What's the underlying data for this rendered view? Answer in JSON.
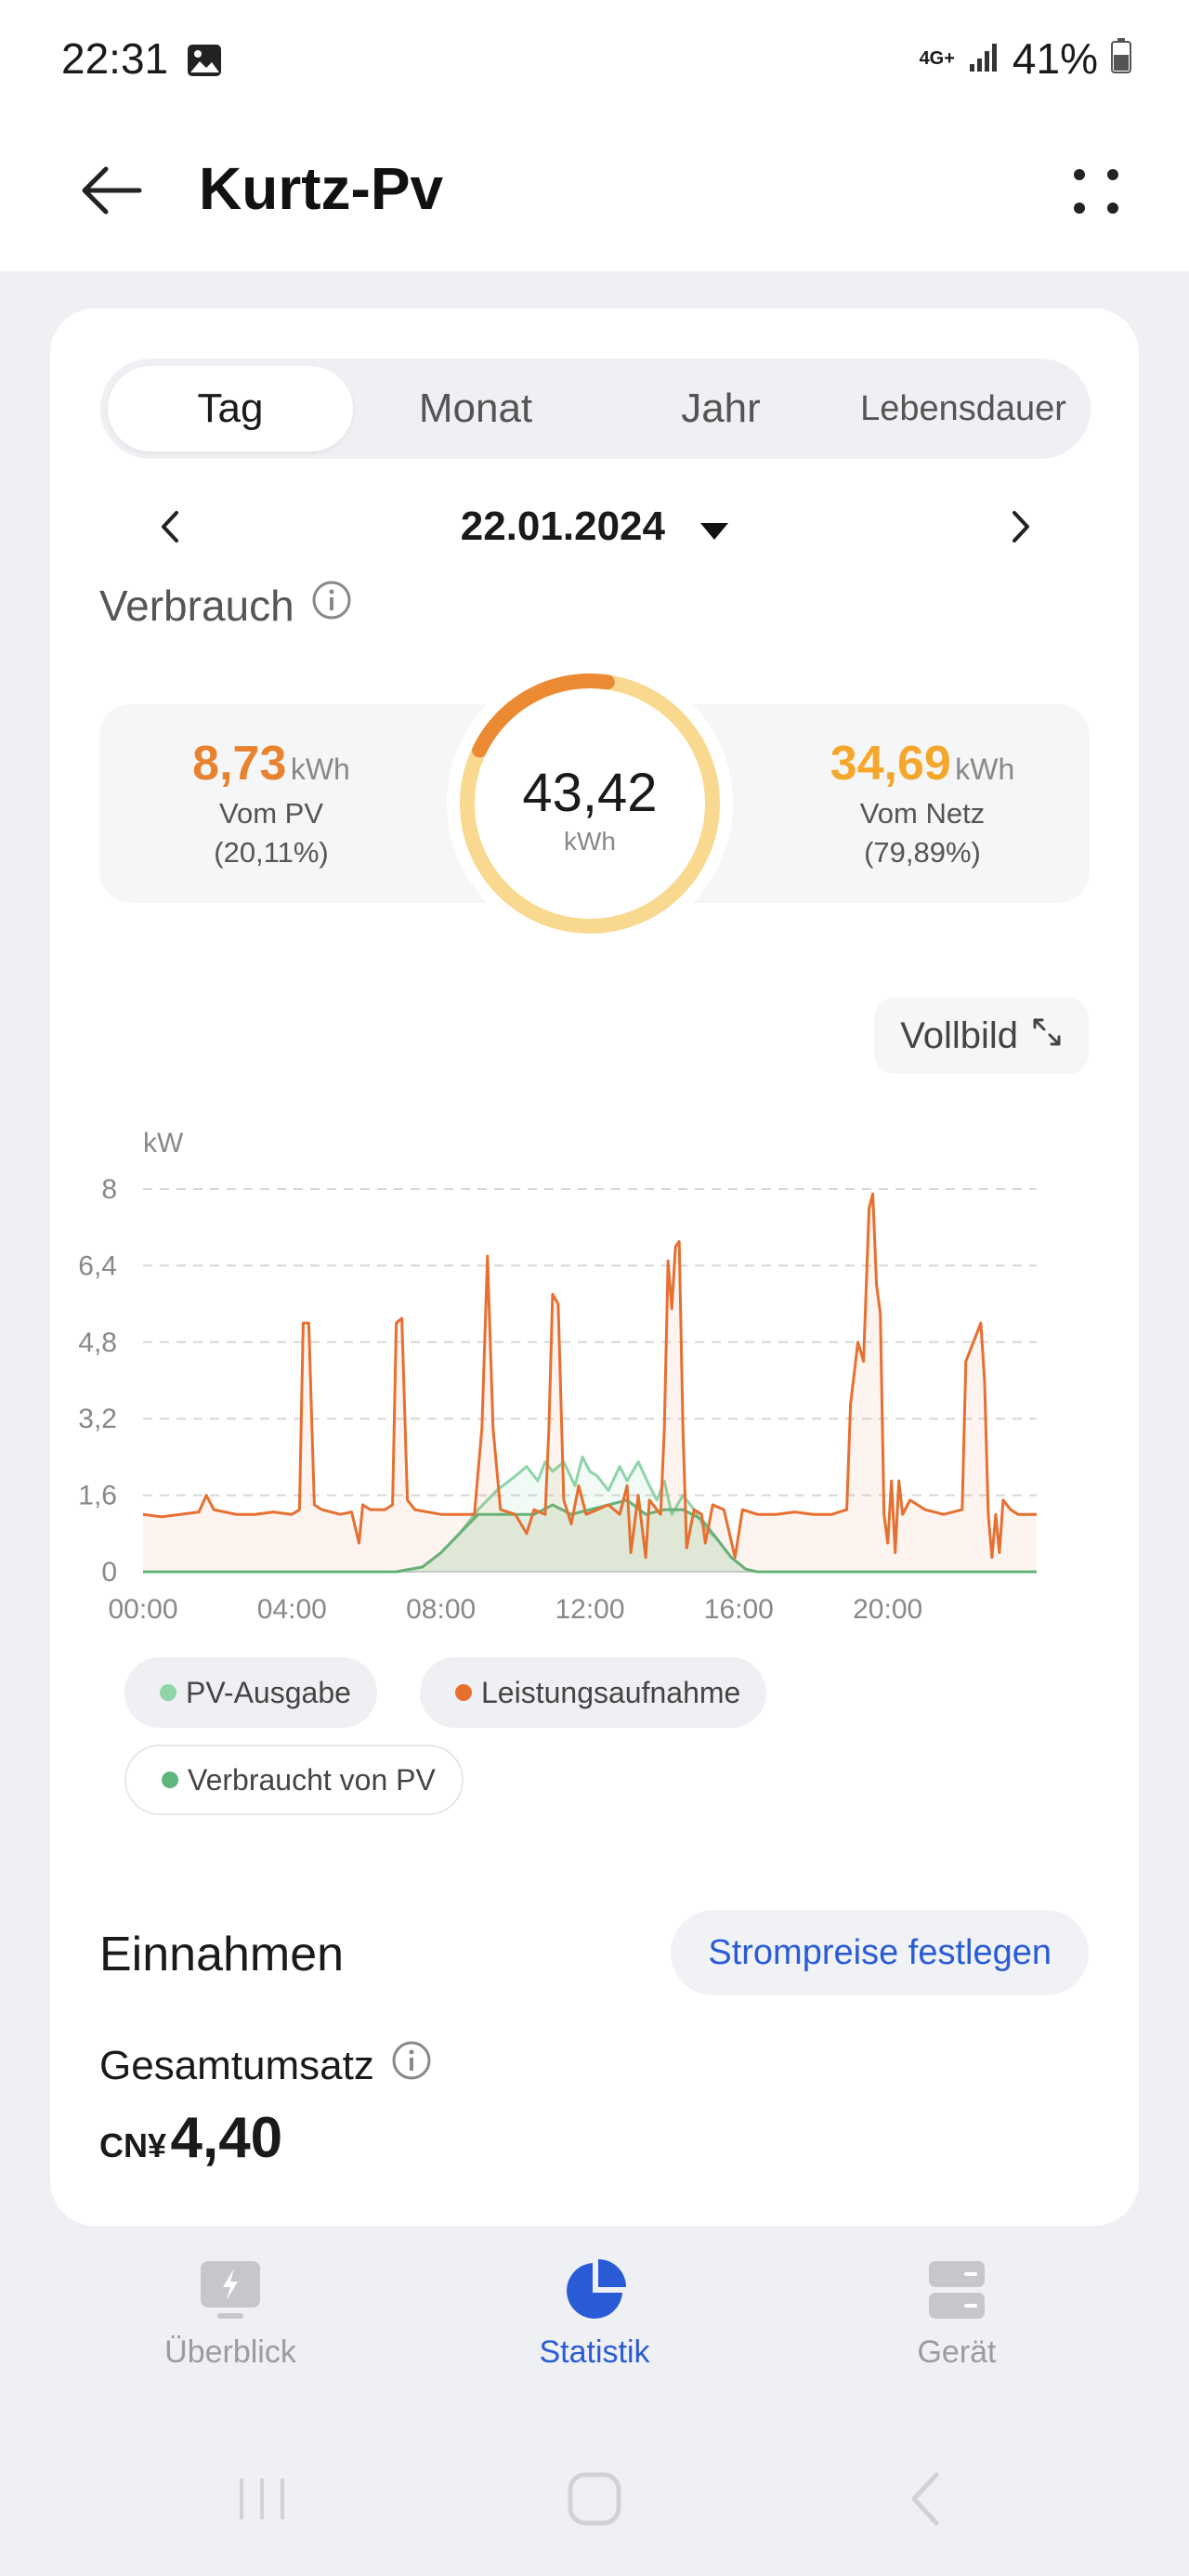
{
  "status": {
    "time": "22:31",
    "network": "4G+",
    "battery": "41%"
  },
  "appbar": {
    "title": "Kurtz-Pv"
  },
  "tabs": [
    {
      "label": "Tag",
      "active": true
    },
    {
      "label": "Monat",
      "active": false
    },
    {
      "label": "Jahr",
      "active": false
    },
    {
      "label": "Lebensdauer",
      "active": false
    }
  ],
  "date": "22.01.2024",
  "consumption": {
    "title": "Verbrauch",
    "total": "43,42",
    "total_unit": "kWh",
    "pv_value": "8,73",
    "pv_unit": "kWh",
    "pv_label": "Vom PV",
    "pv_percent": "(20,11%)",
    "pv_fraction": 0.2011,
    "grid_value": "34,69",
    "grid_unit": "kWh",
    "grid_label": "Vom Netz",
    "grid_percent": "(79,89%)"
  },
  "fullscreen_label": "Vollbild",
  "colors": {
    "pv_orange": "#e8822e",
    "grid_yellow": "#f4a72a",
    "consumption_line": "#e76f30",
    "pv_output_line": "#8fd4a8",
    "pv_used_line": "#5fb67c",
    "link_blue": "#2a5bd7"
  },
  "legend": [
    {
      "label": "PV-Ausgabe",
      "color": "#8fd4a8"
    },
    {
      "label": "Leistungsaufnahme",
      "color": "#e76f30"
    },
    {
      "label": "Verbraucht von PV",
      "color": "#5fb67c"
    }
  ],
  "chart_data": {
    "type": "line",
    "ylabel": "kW",
    "ylim": [
      0,
      8
    ],
    "yticks": [
      "8",
      "6,4",
      "4,8",
      "3,2",
      "1,6",
      "0"
    ],
    "xticks": [
      "00:00",
      "04:00",
      "08:00",
      "12:00",
      "16:00",
      "20:00"
    ],
    "xlim_hours": [
      0,
      24
    ],
    "grid": true,
    "series": [
      {
        "name": "Leistungsaufnahme",
        "color": "#e76f30",
        "points": [
          [
            0.0,
            1.2
          ],
          [
            0.5,
            1.15
          ],
          [
            1.0,
            1.2
          ],
          [
            1.5,
            1.25
          ],
          [
            1.7,
            1.6
          ],
          [
            1.9,
            1.3
          ],
          [
            2.5,
            1.2
          ],
          [
            3.0,
            1.2
          ],
          [
            3.5,
            1.25
          ],
          [
            4.0,
            1.2
          ],
          [
            4.2,
            1.3
          ],
          [
            4.3,
            5.2
          ],
          [
            4.45,
            5.2
          ],
          [
            4.6,
            1.4
          ],
          [
            4.8,
            1.3
          ],
          [
            5.3,
            1.2
          ],
          [
            5.6,
            1.25
          ],
          [
            5.8,
            0.6
          ],
          [
            5.9,
            1.4
          ],
          [
            6.1,
            1.3
          ],
          [
            6.5,
            1.3
          ],
          [
            6.7,
            1.4
          ],
          [
            6.8,
            5.2
          ],
          [
            6.95,
            5.3
          ],
          [
            7.1,
            1.5
          ],
          [
            7.3,
            1.3
          ],
          [
            8.0,
            1.2
          ],
          [
            8.5,
            1.2
          ],
          [
            8.9,
            1.2
          ],
          [
            9.1,
            3.0
          ],
          [
            9.25,
            6.6
          ],
          [
            9.4,
            3.0
          ],
          [
            9.6,
            1.3
          ],
          [
            10.0,
            1.2
          ],
          [
            10.3,
            0.8
          ],
          [
            10.5,
            1.3
          ],
          [
            10.8,
            1.2
          ],
          [
            10.9,
            3.0
          ],
          [
            11.0,
            5.8
          ],
          [
            11.15,
            5.6
          ],
          [
            11.3,
            1.5
          ],
          [
            11.5,
            1.0
          ],
          [
            11.7,
            1.8
          ],
          [
            11.9,
            1.2
          ],
          [
            12.2,
            1.3
          ],
          [
            12.5,
            1.4
          ],
          [
            12.8,
            1.2
          ],
          [
            13.0,
            1.8
          ],
          [
            13.1,
            0.4
          ],
          [
            13.3,
            1.6
          ],
          [
            13.5,
            0.3
          ],
          [
            13.6,
            1.5
          ],
          [
            13.9,
            1.2
          ],
          [
            14.0,
            3.0
          ],
          [
            14.1,
            6.5
          ],
          [
            14.2,
            5.5
          ],
          [
            14.3,
            6.8
          ],
          [
            14.4,
            6.9
          ],
          [
            14.5,
            3.0
          ],
          [
            14.6,
            0.5
          ],
          [
            14.8,
            1.3
          ],
          [
            15.0,
            1.2
          ],
          [
            15.1,
            0.6
          ],
          [
            15.3,
            1.4
          ],
          [
            15.6,
            1.3
          ],
          [
            15.9,
            0.3
          ],
          [
            16.1,
            1.3
          ],
          [
            16.5,
            1.2
          ],
          [
            17.0,
            1.2
          ],
          [
            17.5,
            1.25
          ],
          [
            18.0,
            1.2
          ],
          [
            18.5,
            1.2
          ],
          [
            18.9,
            1.3
          ],
          [
            19.0,
            3.5
          ],
          [
            19.2,
            4.8
          ],
          [
            19.35,
            4.4
          ],
          [
            19.5,
            7.6
          ],
          [
            19.6,
            7.9
          ],
          [
            19.7,
            6.0
          ],
          [
            19.8,
            5.4
          ],
          [
            19.9,
            1.2
          ],
          [
            20.0,
            0.6
          ],
          [
            20.1,
            1.9
          ],
          [
            20.2,
            0.4
          ],
          [
            20.3,
            1.9
          ],
          [
            20.4,
            1.2
          ],
          [
            20.6,
            1.5
          ],
          [
            20.8,
            1.4
          ],
          [
            21.0,
            1.3
          ],
          [
            21.5,
            1.2
          ],
          [
            22.0,
            1.3
          ],
          [
            22.1,
            4.4
          ],
          [
            22.3,
            4.8
          ],
          [
            22.5,
            5.2
          ],
          [
            22.6,
            4.0
          ],
          [
            22.7,
            1.2
          ],
          [
            22.8,
            0.3
          ],
          [
            22.9,
            1.2
          ],
          [
            23.0,
            0.4
          ],
          [
            23.1,
            1.5
          ],
          [
            23.3,
            1.3
          ],
          [
            23.5,
            1.2
          ],
          [
            23.8,
            1.2
          ],
          [
            24.0,
            1.2
          ]
        ]
      },
      {
        "name": "PV-Ausgabe",
        "color": "#8fd4a8",
        "points": [
          [
            0,
            0
          ],
          [
            4,
            0
          ],
          [
            6.8,
            0
          ],
          [
            7.5,
            0.1
          ],
          [
            8.0,
            0.4
          ],
          [
            8.5,
            0.8
          ],
          [
            9.0,
            1.3
          ],
          [
            9.5,
            1.7
          ],
          [
            10.0,
            2.0
          ],
          [
            10.3,
            2.2
          ],
          [
            10.6,
            1.9
          ],
          [
            10.8,
            2.3
          ],
          [
            11.0,
            2.1
          ],
          [
            11.3,
            2.3
          ],
          [
            11.6,
            1.8
          ],
          [
            11.8,
            2.4
          ],
          [
            12.0,
            2.1
          ],
          [
            12.2,
            2.0
          ],
          [
            12.5,
            1.7
          ],
          [
            12.8,
            2.2
          ],
          [
            13.0,
            1.9
          ],
          [
            13.3,
            2.3
          ],
          [
            13.6,
            1.8
          ],
          [
            13.8,
            1.5
          ],
          [
            14.0,
            1.9
          ],
          [
            14.2,
            1.2
          ],
          [
            14.5,
            1.6
          ],
          [
            14.8,
            1.3
          ],
          [
            15.1,
            0.9
          ],
          [
            15.4,
            0.7
          ],
          [
            15.8,
            0.3
          ],
          [
            16.2,
            0.05
          ],
          [
            16.5,
            0
          ],
          [
            24,
            0
          ]
        ]
      },
      {
        "name": "Verbraucht von PV",
        "color": "#5fb67c",
        "points": [
          [
            0,
            0
          ],
          [
            6.8,
            0
          ],
          [
            7.5,
            0.1
          ],
          [
            8.0,
            0.4
          ],
          [
            8.5,
            0.8
          ],
          [
            9.0,
            1.2
          ],
          [
            9.5,
            1.2
          ],
          [
            10.0,
            1.2
          ],
          [
            10.5,
            1.2
          ],
          [
            11.0,
            1.4
          ],
          [
            11.5,
            1.2
          ],
          [
            12.0,
            1.3
          ],
          [
            12.5,
            1.4
          ],
          [
            13.0,
            1.5
          ],
          [
            13.5,
            1.2
          ],
          [
            14.0,
            1.3
          ],
          [
            14.5,
            1.3
          ],
          [
            15.0,
            1.1
          ],
          [
            15.4,
            0.7
          ],
          [
            15.8,
            0.3
          ],
          [
            16.2,
            0.05
          ],
          [
            16.5,
            0
          ],
          [
            24,
            0
          ]
        ]
      }
    ]
  },
  "revenue": {
    "title": "Einnahmen",
    "button": "Strompreise festlegen",
    "total_label": "Gesamtumsatz",
    "currency": "CN¥",
    "amount": "4,40"
  },
  "nav": [
    {
      "label": "Überblick",
      "icon": "overview-icon",
      "active": false
    },
    {
      "label": "Statistik",
      "icon": "statistics-pie-icon",
      "active": true
    },
    {
      "label": "Gerät",
      "icon": "device-icon",
      "active": false
    }
  ]
}
